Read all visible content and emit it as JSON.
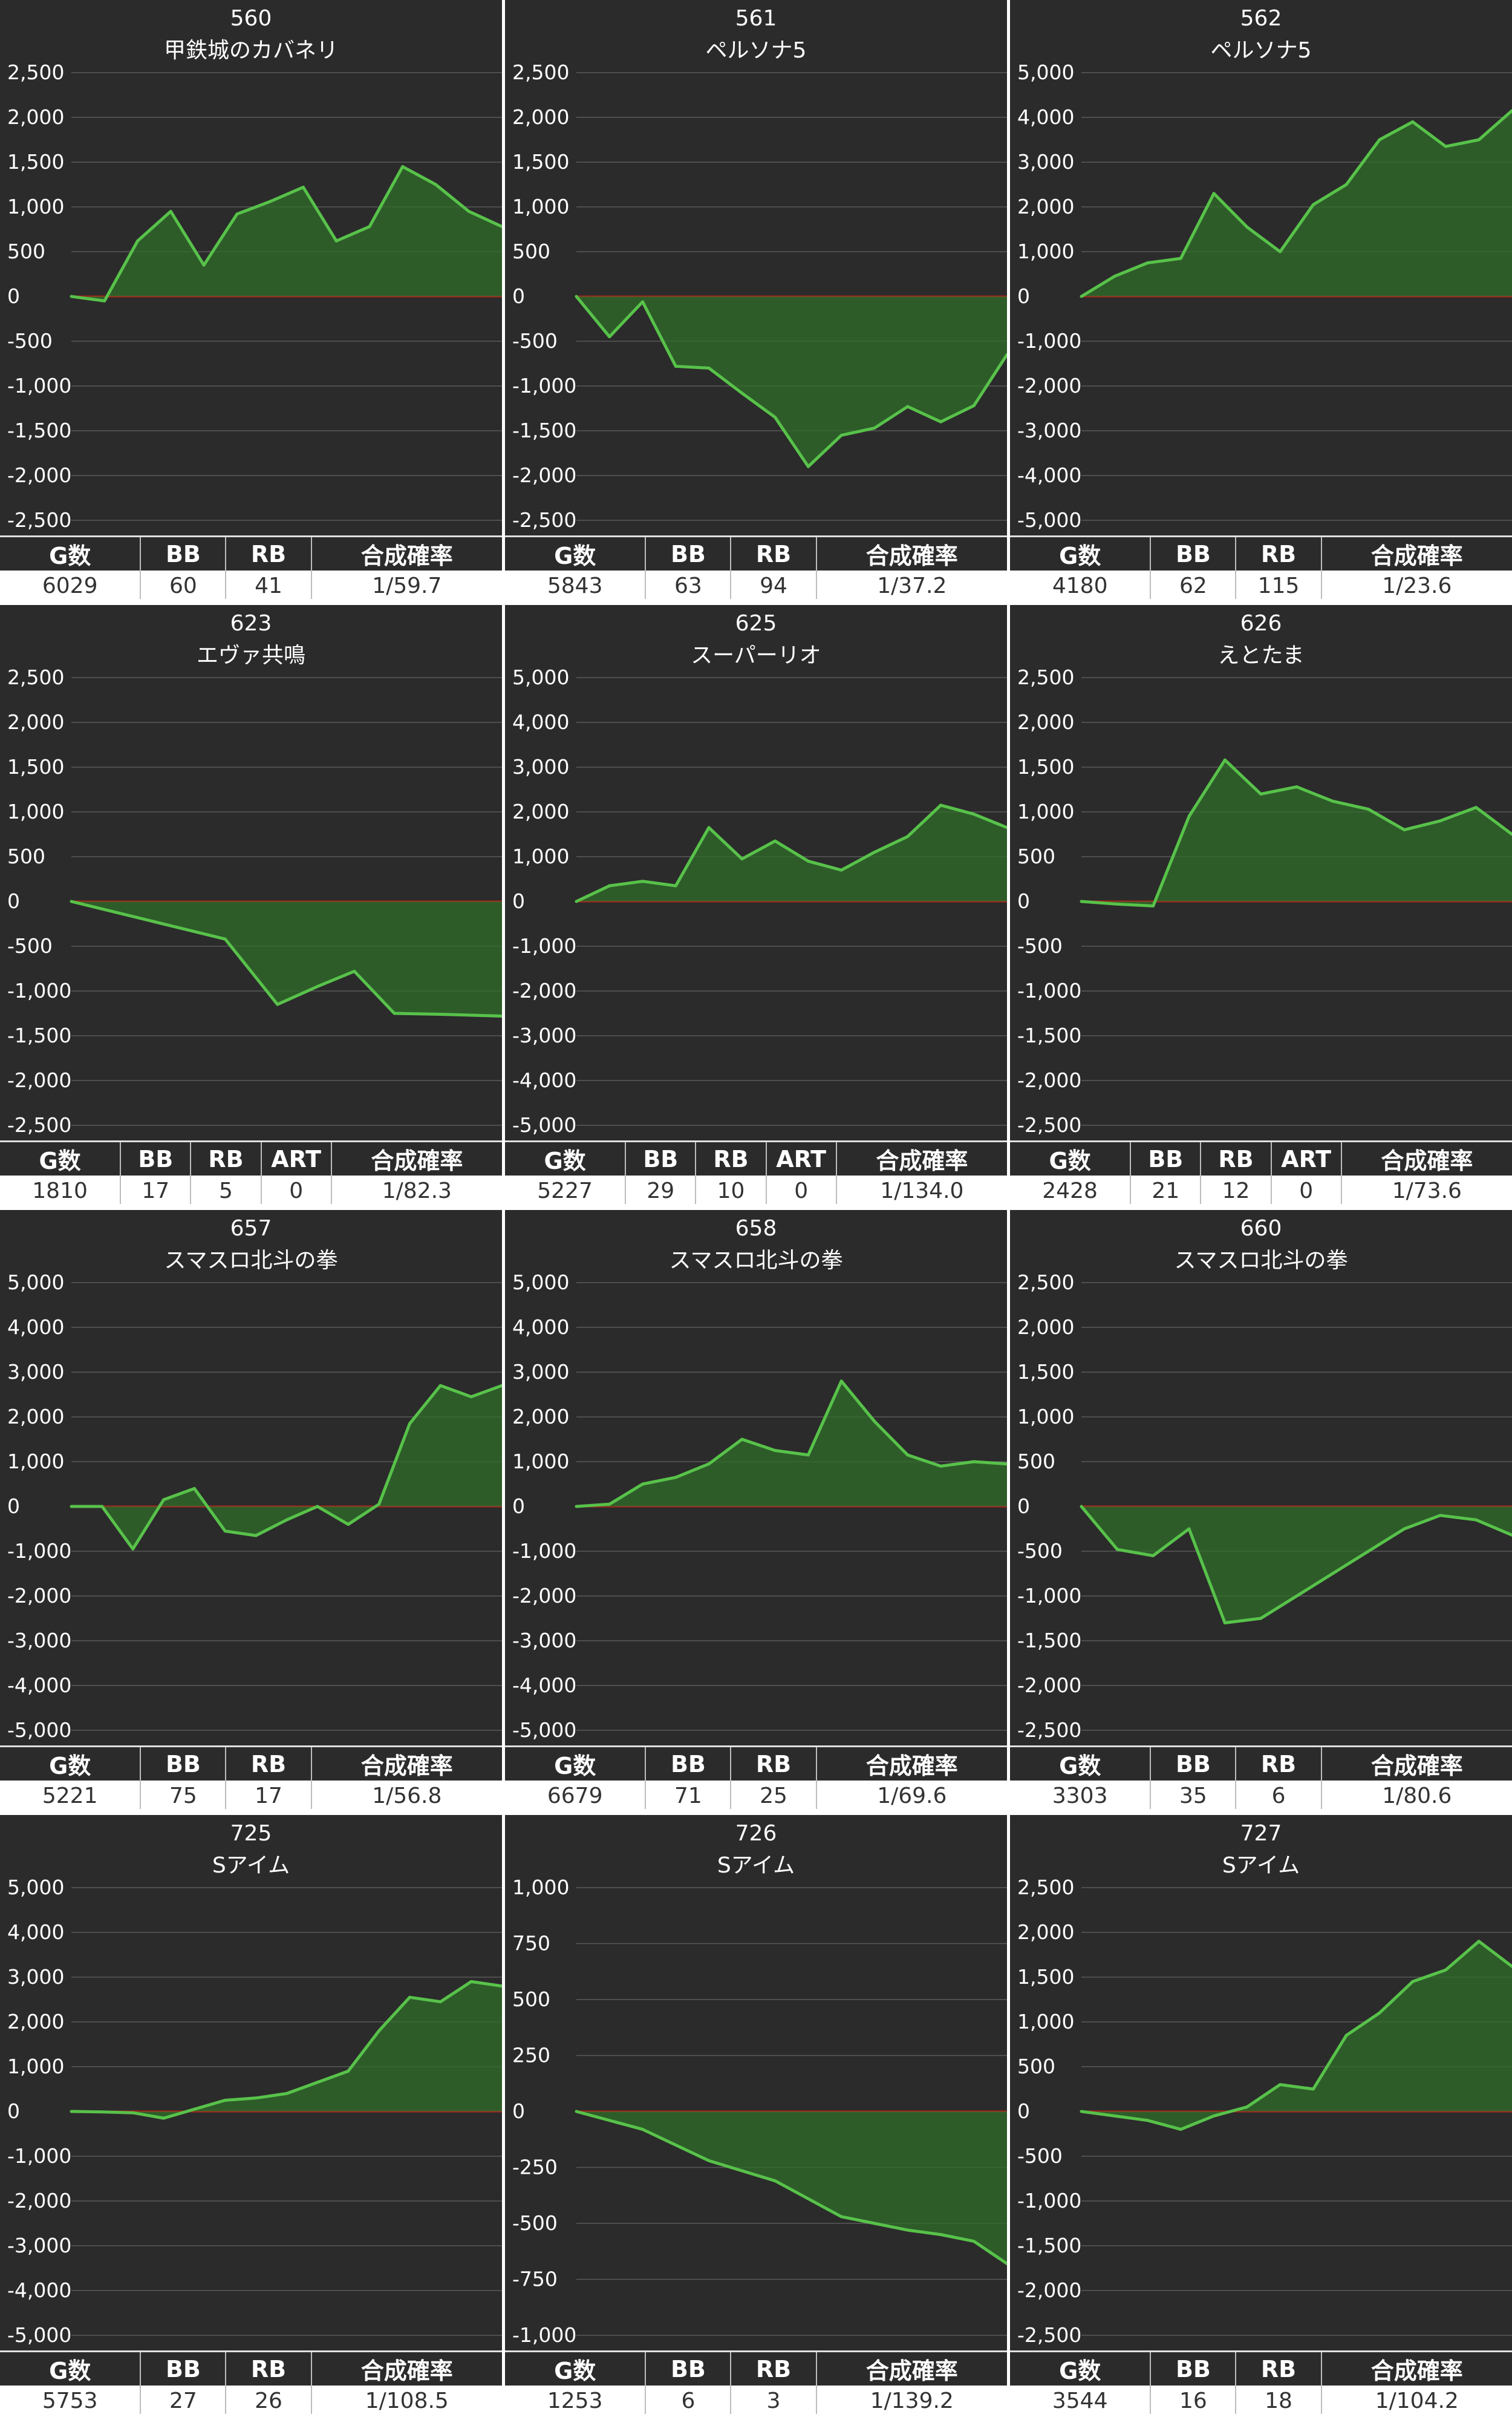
{
  "colors": {
    "background": "#2b2b2b",
    "grid": "#5a5a5a",
    "line": "#58c24a",
    "fill": "#2f6e2a",
    "zero_line": "#b0241c",
    "table_header": "#2b2b2b",
    "table_cell": "#ffffff"
  },
  "chart_data": [
    {
      "type": "area",
      "machine_no": "560",
      "title": "甲鉄城のカバネリ",
      "ylim": [
        -2500,
        2500
      ],
      "yticks": [
        "2,500",
        "2,000",
        "1,500",
        "1,000",
        "500",
        "0",
        "-500",
        "-1,000",
        "-1,500",
        "-2,000",
        "-2,500"
      ],
      "values": [
        0,
        -50,
        620,
        950,
        350,
        920,
        1060,
        1220,
        620,
        780,
        1450,
        1250,
        950,
        780
      ],
      "stats_headers": [
        "G数",
        "BB",
        "RB",
        "合成確率"
      ],
      "stats_values": [
        "6029",
        "60",
        "41",
        "1/59.7"
      ]
    },
    {
      "type": "area",
      "machine_no": "561",
      "title": "ペルソナ5",
      "ylim": [
        -2500,
        2500
      ],
      "yticks": [
        "2,500",
        "2,000",
        "1,500",
        "1,000",
        "500",
        "0",
        "-500",
        "-1,000",
        "-1,500",
        "-2,000",
        "-2,500"
      ],
      "values": [
        0,
        -450,
        -60,
        -780,
        -800,
        -1080,
        -1350,
        -1900,
        -1550,
        -1470,
        -1230,
        -1400,
        -1220,
        -650
      ],
      "stats_headers": [
        "G数",
        "BB",
        "RB",
        "合成確率"
      ],
      "stats_values": [
        "5843",
        "63",
        "94",
        "1/37.2"
      ]
    },
    {
      "type": "area",
      "machine_no": "562",
      "title": "ペルソナ5",
      "ylim": [
        -5000,
        5000
      ],
      "yticks": [
        "5,000",
        "4,000",
        "3,000",
        "2,000",
        "1,000",
        "0",
        "-1,000",
        "-2,000",
        "-3,000",
        "-4,000",
        "-5,000"
      ],
      "values": [
        0,
        450,
        750,
        850,
        2300,
        1550,
        1000,
        2050,
        2500,
        3500,
        3900,
        3350,
        3500,
        4150
      ],
      "stats_headers": [
        "G数",
        "BB",
        "RB",
        "合成確率"
      ],
      "stats_values": [
        "4180",
        "62",
        "115",
        "1/23.6"
      ]
    },
    {
      "type": "area",
      "machine_no": "623",
      "title": "エヴァ共鳴",
      "ylim": [
        -2500,
        2500
      ],
      "yticks": [
        "2,500",
        "2,000",
        "1,500",
        "1,000",
        "500",
        "0",
        "-500",
        "-1,000",
        "-1,500",
        "-2,000",
        "-2,500"
      ],
      "x": [
        0,
        5,
        6.7,
        8,
        9.2,
        10.5,
        12,
        14
      ],
      "values": [
        0,
        -420,
        -1150,
        -950,
        -780,
        -1250,
        -1260,
        -1280
      ],
      "stats_headers": [
        "G数",
        "BB",
        "RB",
        "ART",
        "合成確率"
      ],
      "stats_values": [
        "1810",
        "17",
        "5",
        "0",
        "1/82.3"
      ]
    },
    {
      "type": "area",
      "machine_no": "625",
      "title": "スーパーリオ",
      "ylim": [
        -5000,
        5000
      ],
      "yticks": [
        "5,000",
        "4,000",
        "3,000",
        "2,000",
        "1,000",
        "0",
        "-1,000",
        "-2,000",
        "-3,000",
        "-4,000",
        "-5,000"
      ],
      "values": [
        0,
        350,
        450,
        350,
        1650,
        950,
        1350,
        900,
        700,
        1100,
        1450,
        2150,
        1950,
        1650
      ],
      "stats_headers": [
        "G数",
        "BB",
        "RB",
        "ART",
        "合成確率"
      ],
      "stats_values": [
        "5227",
        "29",
        "10",
        "0",
        "1/134.0"
      ]
    },
    {
      "type": "area",
      "machine_no": "626",
      "title": "えとたま",
      "ylim": [
        -2500,
        2500
      ],
      "yticks": [
        "2,500",
        "2,000",
        "1,500",
        "1,000",
        "500",
        "0",
        "-500",
        "-1,000",
        "-1,500",
        "-2,000",
        "-2,500"
      ],
      "values": [
        0,
        -30,
        -50,
        950,
        1580,
        1200,
        1280,
        1120,
        1030,
        800,
        900,
        1050,
        750
      ],
      "stats_headers": [
        "G数",
        "BB",
        "RB",
        "ART",
        "合成確率"
      ],
      "stats_values": [
        "2428",
        "21",
        "12",
        "0",
        "1/73.6"
      ]
    },
    {
      "type": "area",
      "machine_no": "657",
      "title": "スマスロ北斗の拳",
      "ylim": [
        -5000,
        5000
      ],
      "yticks": [
        "5,000",
        "4,000",
        "3,000",
        "2,000",
        "1,000",
        "0",
        "-1,000",
        "-2,000",
        "-3,000",
        "-4,000",
        "-5,000"
      ],
      "values": [
        0,
        0,
        -950,
        150,
        400,
        -550,
        -650,
        -300,
        0,
        -400,
        50,
        1850,
        2700,
        2450,
        2700
      ],
      "stats_headers": [
        "G数",
        "BB",
        "RB",
        "合成確率"
      ],
      "stats_values": [
        "5221",
        "75",
        "17",
        "1/56.8"
      ]
    },
    {
      "type": "area",
      "machine_no": "658",
      "title": "スマスロ北斗の拳",
      "ylim": [
        -5000,
        5000
      ],
      "yticks": [
        "5,000",
        "4,000",
        "3,000",
        "2,000",
        "1,000",
        "0",
        "-1,000",
        "-2,000",
        "-3,000",
        "-4,000",
        "-5,000"
      ],
      "values": [
        0,
        50,
        500,
        650,
        950,
        1500,
        1250,
        1150,
        2800,
        1900,
        1150,
        900,
        1000,
        950
      ],
      "stats_headers": [
        "G数",
        "BB",
        "RB",
        "合成確率"
      ],
      "stats_values": [
        "6679",
        "71",
        "25",
        "1/69.6"
      ]
    },
    {
      "type": "area",
      "machine_no": "660",
      "title": "スマスロ北斗の拳",
      "ylim": [
        -2500,
        2500
      ],
      "yticks": [
        "2,500",
        "2,000",
        "1,500",
        "1,000",
        "500",
        "0",
        "-500",
        "-1,000",
        "-1,500",
        "-2,000",
        "-2,500"
      ],
      "x": [
        0,
        1,
        2,
        3,
        4,
        5,
        7,
        8,
        9,
        10,
        11,
        12
      ],
      "values": [
        0,
        -480,
        -550,
        -250,
        -1300,
        -1250,
        -750,
        -500,
        -250,
        -100,
        -150,
        -320
      ],
      "stats_headers": [
        "G数",
        "BB",
        "RB",
        "合成確率"
      ],
      "stats_values": [
        "3303",
        "35",
        "6",
        "1/80.6"
      ]
    },
    {
      "type": "area",
      "machine_no": "725",
      "title": "Sアイム",
      "ylim": [
        -5000,
        5000
      ],
      "yticks": [
        "5,000",
        "4,000",
        "3,000",
        "2,000",
        "1,000",
        "0",
        "-1,000",
        "-2,000",
        "-3,000",
        "-4,000",
        "-5,000"
      ],
      "values": [
        0,
        -10,
        -30,
        -150,
        50,
        250,
        300,
        400,
        650,
        900,
        1800,
        2550,
        2450,
        2900,
        2800
      ],
      "stats_headers": [
        "G数",
        "BB",
        "RB",
        "合成確率"
      ],
      "stats_values": [
        "5753",
        "27",
        "26",
        "1/108.5"
      ]
    },
    {
      "type": "area",
      "machine_no": "726",
      "title": "Sアイム",
      "ylim": [
        -1000,
        1000
      ],
      "yticks": [
        "1,000",
        "750",
        "500",
        "250",
        "0",
        "-250",
        "-500",
        "-750",
        "-1,000"
      ],
      "x": [
        0,
        2,
        4,
        6,
        8,
        9,
        10,
        11,
        12,
        13
      ],
      "values": [
        0,
        -80,
        -220,
        -310,
        -470,
        -500,
        -530,
        -550,
        -580,
        -680
      ],
      "stats_headers": [
        "G数",
        "BB",
        "RB",
        "合成確率"
      ],
      "stats_values": [
        "1253",
        "6",
        "3",
        "1/139.2"
      ]
    },
    {
      "type": "area",
      "machine_no": "727",
      "title": "Sアイム",
      "ylim": [
        -2500,
        2500
      ],
      "yticks": [
        "2,500",
        "2,000",
        "1,500",
        "1,000",
        "500",
        "0",
        "-500",
        "-1,000",
        "-1,500",
        "-2,000",
        "-2,500"
      ],
      "values": [
        0,
        -50,
        -100,
        -200,
        -50,
        50,
        300,
        250,
        850,
        1100,
        1450,
        1580,
        1900,
        1620
      ],
      "stats_headers": [
        "G数",
        "BB",
        "RB",
        "合成確率"
      ],
      "stats_values": [
        "3544",
        "16",
        "18",
        "1/104.2"
      ]
    }
  ]
}
